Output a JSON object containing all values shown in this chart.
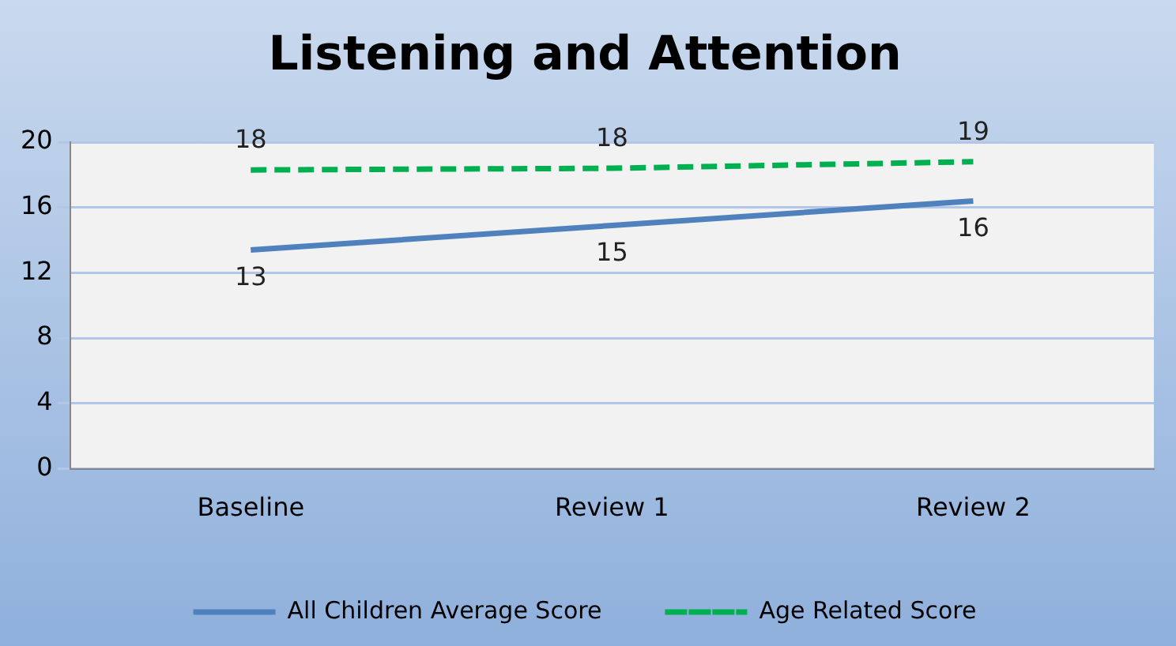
{
  "chart_data": {
    "type": "line",
    "title": "Listening and Attention",
    "categories": [
      "Baseline",
      "Review 1",
      "Review 2"
    ],
    "series": [
      {
        "name": "All Children Average Score",
        "color": "#4f81bd",
        "values": [
          13.4,
          14.9,
          16.4
        ],
        "value_labels": [
          "13",
          "15",
          "16"
        ],
        "line_style": "solid"
      },
      {
        "name": "Age Related Score",
        "color": "#00b050",
        "values": [
          18.3,
          18.4,
          18.8
        ],
        "value_labels": [
          "18",
          "18",
          "19"
        ],
        "line_style": "dashed"
      }
    ],
    "ylim": [
      0,
      20
    ],
    "yticks": [
      0,
      4,
      8,
      12,
      16,
      20
    ],
    "grid": "y",
    "legend": "bottom",
    "marker": "none"
  }
}
